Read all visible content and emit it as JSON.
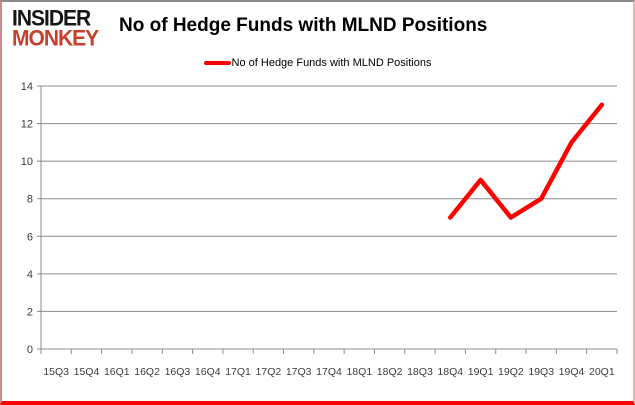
{
  "brand": {
    "line1": "INSIDER",
    "line2": "MONKEY",
    "line1_color": "#161616",
    "line2_color": "#c7402d"
  },
  "header": {
    "title": "No of Hedge Funds with MLND Positions"
  },
  "legend": {
    "label": "No of Hedge Funds with MLND Positions",
    "swatch_color": "#fe0000"
  },
  "chart_data": {
    "type": "line",
    "title": "No of Hedge Funds with MLND Positions",
    "categories": [
      "15Q3",
      "15Q4",
      "16Q1",
      "16Q2",
      "16Q3",
      "16Q4",
      "17Q1",
      "17Q2",
      "17Q3",
      "17Q4",
      "18Q1",
      "18Q2",
      "18Q3",
      "18Q4",
      "19Q1",
      "19Q2",
      "19Q3",
      "19Q4",
      "20Q1"
    ],
    "series": [
      {
        "name": "No of Hedge Funds with MLND Positions",
        "color": "#fe0000",
        "values": [
          null,
          null,
          null,
          null,
          null,
          null,
          null,
          null,
          null,
          null,
          null,
          null,
          null,
          7,
          9,
          7,
          8,
          11,
          13
        ]
      }
    ],
    "xlabel": "",
    "ylabel": "",
    "ylim": [
      0,
      14
    ],
    "yticks": [
      0,
      2,
      4,
      6,
      8,
      10,
      12,
      14
    ],
    "grid": true,
    "legend_position": "top-center"
  },
  "style": {
    "grid_color": "#8c8c8c",
    "axis_color": "#8c8c8c",
    "tick_label_color": "#3c3c3c",
    "border_top_color": "#8a8a8a",
    "border_side_color": "#c98f8f",
    "border_bottom_color": "#fe0000"
  }
}
